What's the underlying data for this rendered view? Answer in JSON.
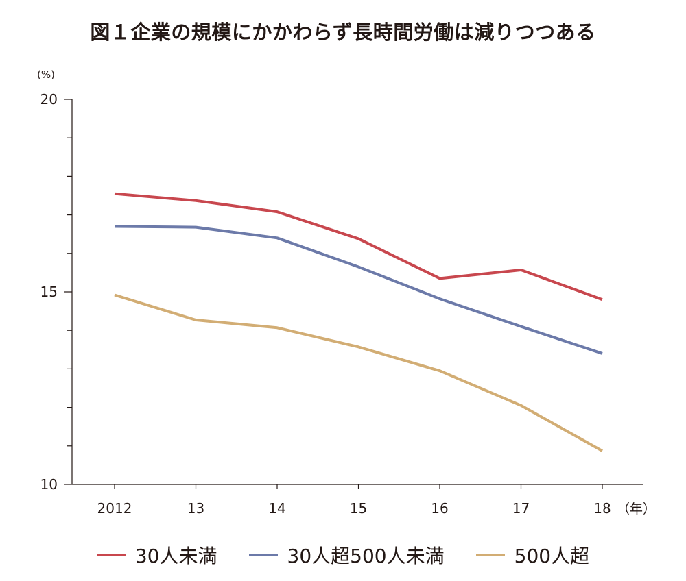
{
  "chart_data": {
    "type": "line",
    "title": "図１企業の規模にかかわらず長時間労働は減りつつある",
    "x_unit": "（年）",
    "y_unit": "(%)",
    "categories": [
      "2012",
      "13",
      "14",
      "15",
      "16",
      "17",
      "18"
    ],
    "ylim": [
      10,
      20
    ],
    "y_ticks": [
      "10",
      "15",
      "20"
    ],
    "y_minor_ticks": [
      11,
      12,
      13,
      14,
      16,
      17,
      18,
      19
    ],
    "grid": false,
    "legend_position": "bottom",
    "series": [
      {
        "name": "30人未満",
        "color": "#c8474e",
        "values": [
          17.55,
          17.37,
          17.08,
          16.38,
          15.35,
          15.57,
          14.8
        ]
      },
      {
        "name": "30人超500人未満",
        "color": "#6c7aa9",
        "values": [
          16.7,
          16.68,
          16.4,
          15.65,
          14.82,
          14.1,
          13.4
        ]
      },
      {
        "name": "500人超",
        "color": "#d2ad74",
        "values": [
          14.92,
          14.27,
          14.07,
          13.57,
          12.95,
          12.05,
          10.87
        ]
      }
    ]
  }
}
